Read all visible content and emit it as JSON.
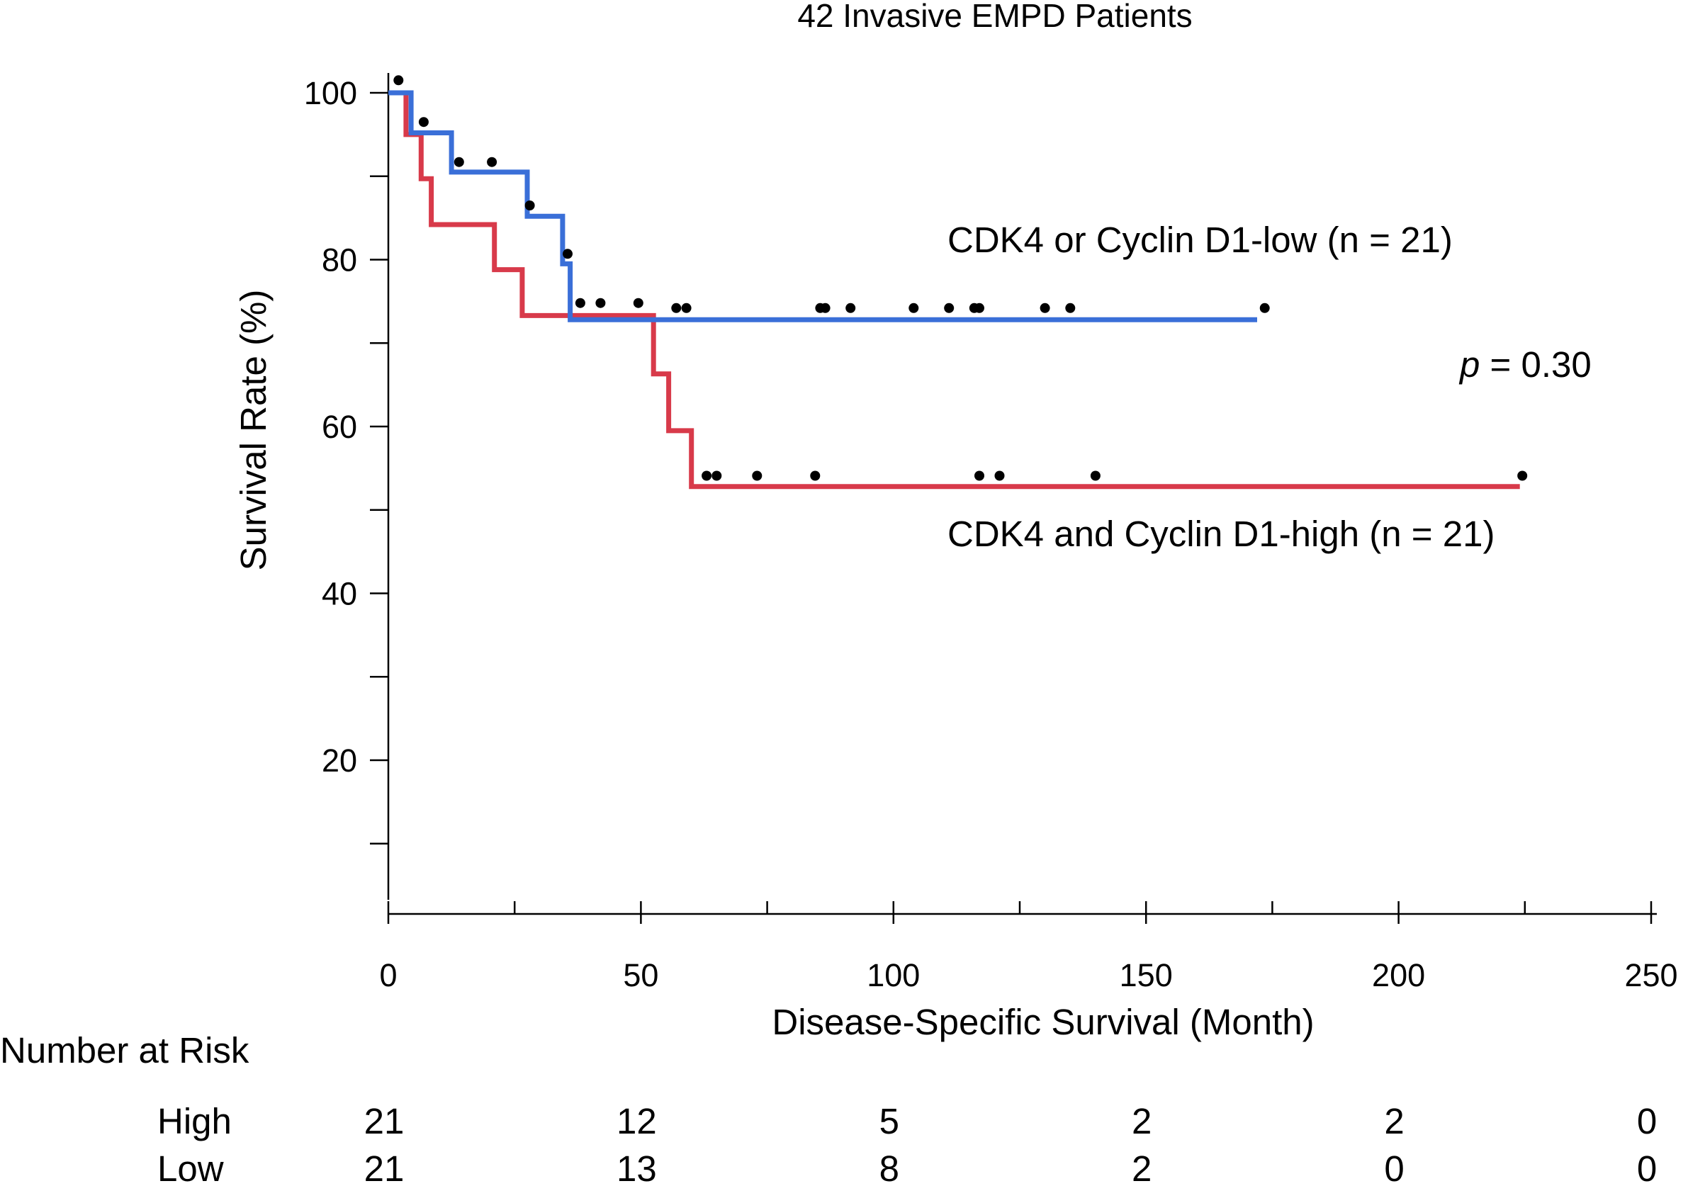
{
  "chart_data": {
    "type": "line",
    "subtype": "kaplan-meier",
    "title": "42 Invasive EMPD Patients",
    "xlabel": "Disease-Specific Survival (Month)",
    "ylabel": "Survival Rate (%)",
    "xlim": [
      0,
      250
    ],
    "ylim": [
      0,
      105
    ],
    "x_ticks": [
      0,
      50,
      100,
      150,
      200,
      250
    ],
    "x_tick_labels": [
      "0",
      "50",
      "100",
      "150",
      "200",
      "250"
    ],
    "y_ticks": [
      20,
      40,
      60,
      80,
      100
    ],
    "y_tick_labels": [
      "20",
      "40",
      "60",
      "80",
      "100"
    ],
    "y_minor_ticks": [
      10,
      30,
      50,
      70,
      90
    ],
    "x_minor_ticks": [
      25,
      75,
      125,
      175,
      225
    ],
    "grid": false,
    "series": [
      {
        "name": "CDK4 or Cyclin D1-low (n = 21)",
        "color": "#3a6fd8",
        "step_x": [
          0,
          4.5,
          4.5,
          12.5,
          12.5,
          27.5,
          27.5,
          34.5,
          34.5,
          36,
          36,
          172
        ],
        "step_y": [
          100,
          100,
          95.2,
          95.2,
          90.5,
          90.5,
          85.2,
          85.2,
          79.5,
          79.5,
          72.8,
          72.8
        ],
        "censored_x": [
          2,
          7,
          14,
          20.5,
          28,
          35.5,
          38,
          42,
          49.5,
          57,
          59,
          85.5,
          86.5,
          91.5,
          104,
          111,
          116,
          117,
          130,
          135,
          173.5
        ],
        "censored_y": [
          101.5,
          96.5,
          91.7,
          91.7,
          86.5,
          80.7,
          74.8,
          74.8,
          74.8,
          74.2,
          74.2,
          74.2,
          74.2,
          74.2,
          74.2,
          74.2,
          74.2,
          74.2,
          74.2,
          74.2,
          74.2
        ]
      },
      {
        "name": "CDK4 and Cyclin D1-high (n = 21)",
        "color": "#d83a4a",
        "step_x": [
          0,
          3.5,
          3.5,
          6.5,
          6.5,
          8.5,
          8.5,
          21,
          21,
          26.5,
          26.5,
          52.5,
          52.5,
          55.5,
          55.5,
          60,
          60,
          224
        ],
        "step_y": [
          100,
          100,
          95,
          95,
          89.7,
          89.7,
          84.2,
          84.2,
          78.8,
          78.8,
          73.3,
          73.3,
          66.3,
          66.3,
          59.5,
          59.5,
          52.8,
          52.8
        ],
        "censored_x": [
          63,
          65,
          73,
          84.5,
          117,
          121,
          140,
          224.5
        ],
        "censored_y": [
          54.1,
          54.1,
          54.1,
          54.1,
          54.1,
          54.1,
          54.1,
          54.1
        ]
      }
    ],
    "annotations": {
      "low_label": "CDK4 or Cyclin D1-low (n = 21)",
      "high_label": "CDK4 and Cyclin D1-high (n = 21)",
      "p_symbol": "p",
      "p_rest": " = 0.30"
    },
    "risk_table": {
      "title": "Number at Risk",
      "times": [
        0,
        50,
        100,
        150,
        200,
        250
      ],
      "rows": [
        {
          "label": "High",
          "values": [
            "21",
            "12",
            "5",
            "2",
            "2",
            "0"
          ]
        },
        {
          "label": "Low",
          "values": [
            "21",
            "13",
            "8",
            "2",
            "0",
            "0"
          ]
        }
      ]
    }
  }
}
